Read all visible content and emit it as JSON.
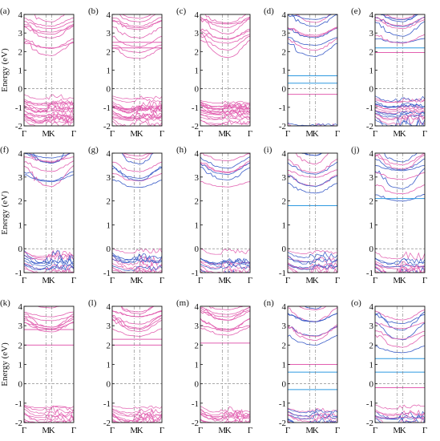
{
  "figure": {
    "ylabel": "Energy (eV)",
    "x_ticks": [
      "Γ",
      "M",
      "K",
      "Γ"
    ],
    "colors": {
      "pink": "#e25fb0",
      "blue": "#3a5cc8",
      "cyan": "#2f9ae0",
      "axis": "#111111",
      "dash": "#777777"
    }
  },
  "chart_data": [
    {
      "label": "(a)",
      "type": "line",
      "ylim": [
        -2,
        4
      ],
      "y_ticks": [
        "-2",
        "-1",
        "0",
        "1",
        "2",
        "3",
        "4"
      ],
      "dashed_zero": true,
      "gap": [
        0,
        1.3
      ],
      "valence_top": -0.1,
      "style": "pink",
      "flat_levels": [],
      "cond_range": [
        1.3,
        4
      ]
    },
    {
      "label": "(b)",
      "type": "line",
      "ylim": [
        -2,
        4
      ],
      "y_ticks": [
        "-2",
        "-1",
        "0",
        "1",
        "2",
        "3",
        "4"
      ],
      "dashed_zero": true,
      "gap": [
        0,
        1.3
      ],
      "valence_top": -0.1,
      "style": "pink",
      "flat_levels": [
        2.2,
        2.5
      ],
      "cond_range": [
        1.3,
        4
      ]
    },
    {
      "label": "(c)",
      "type": "line",
      "ylim": [
        -2,
        4
      ],
      "y_ticks": [
        "-2",
        "-1",
        "0",
        "1",
        "2",
        "3",
        "4"
      ],
      "dashed_zero": true,
      "gap": [
        0,
        1.3
      ],
      "valence_top": -0.1,
      "style": "pink",
      "flat_levels": [],
      "cond_range": [
        1.2,
        4
      ]
    },
    {
      "label": "(d)",
      "type": "line",
      "ylim": [
        -2,
        4
      ],
      "y_ticks": [
        "-2",
        "-1",
        "0",
        "1",
        "2",
        "3",
        "4"
      ],
      "dashed_zero": true,
      "gap": [
        -0.2,
        1.4
      ],
      "valence_top": -1.5,
      "style": "mix",
      "flat_levels": [
        0.3,
        -0.3,
        0.7
      ],
      "cond_range": [
        1.4,
        4
      ]
    },
    {
      "label": "(e)",
      "type": "line",
      "ylim": [
        -2,
        4
      ],
      "y_ticks": [
        "-2",
        "-1",
        "0",
        "1",
        "2",
        "3",
        "4"
      ],
      "dashed_zero": true,
      "gap": [
        0,
        1.8
      ],
      "valence_top": 0.0,
      "style": "mix",
      "flat_levels": [
        2.2,
        1.95
      ],
      "cond_range": [
        2.0,
        4
      ]
    },
    {
      "label": "(f)",
      "type": "line",
      "ylim": [
        -1,
        4
      ],
      "y_ticks": [
        "-1",
        "0",
        "1",
        "2",
        "3",
        "4"
      ],
      "dashed_zero": true,
      "gap": [
        0.3,
        2.0
      ],
      "valence_top": 0.3,
      "style": "mix",
      "flat_levels": [],
      "cond_range": [
        2.0,
        4
      ]
    },
    {
      "label": "(g)",
      "type": "line",
      "ylim": [
        -1,
        4
      ],
      "y_ticks": [
        "-1",
        "0",
        "1",
        "2",
        "3",
        "4"
      ],
      "dashed_zero": true,
      "gap": [
        0.3,
        2.0
      ],
      "valence_top": 0.3,
      "style": "mix",
      "flat_levels": [],
      "cond_range": [
        2.0,
        4
      ]
    },
    {
      "label": "(h)",
      "type": "line",
      "ylim": [
        -1,
        4
      ],
      "y_ticks": [
        "-1",
        "0",
        "1",
        "2",
        "3",
        "4"
      ],
      "dashed_zero": true,
      "gap": [
        0.3,
        2.0
      ],
      "valence_top": 0.2,
      "style": "mix",
      "flat_levels": [],
      "cond_range": [
        2.0,
        4
      ]
    },
    {
      "label": "(i)",
      "type": "line",
      "ylim": [
        -1,
        4
      ],
      "y_ticks": [
        "-1",
        "0",
        "1",
        "2",
        "3",
        "4"
      ],
      "dashed_zero": true,
      "gap": [
        0.3,
        1.7
      ],
      "valence_top": 0.2,
      "style": "mix",
      "flat_levels": [
        1.8
      ],
      "cond_range": [
        1.7,
        4
      ]
    },
    {
      "label": "(j)",
      "type": "line",
      "ylim": [
        -1,
        4
      ],
      "y_ticks": [
        "-1",
        "0",
        "1",
        "2",
        "3",
        "4"
      ],
      "dashed_zero": true,
      "gap": [
        0.3,
        1.7
      ],
      "valence_top": 0.2,
      "style": "mix",
      "flat_levels": [
        2.1
      ],
      "cond_range": [
        1.6,
        4
      ]
    },
    {
      "label": "(k)",
      "type": "line",
      "ylim": [
        -2,
        4
      ],
      "y_ticks": [
        "-2",
        "-1",
        "0",
        "1",
        "2",
        "3",
        "4"
      ],
      "dashed_zero": true,
      "gap": [
        -0.8,
        2.0
      ],
      "valence_top": -0.8,
      "style": "pink",
      "flat_levels": [
        2.0,
        2.8
      ],
      "cond_range": [
        2.0,
        4
      ]
    },
    {
      "label": "(l)",
      "type": "line",
      "ylim": [
        -2,
        4
      ],
      "y_ticks": [
        "-2",
        "-1",
        "0",
        "1",
        "2",
        "3",
        "4"
      ],
      "dashed_zero": true,
      "gap": [
        -0.8,
        2.0
      ],
      "valence_top": -0.8,
      "style": "pink",
      "flat_levels": [
        2.0,
        2.3
      ],
      "cond_range": [
        2.0,
        4
      ]
    },
    {
      "label": "(m)",
      "type": "line",
      "ylim": [
        -2,
        4
      ],
      "y_ticks": [
        "-2",
        "-1",
        "0",
        "1",
        "2",
        "3",
        "4"
      ],
      "dashed_zero": true,
      "gap": [
        -0.8,
        2.0
      ],
      "valence_top": -0.8,
      "style": "pink",
      "flat_levels": [
        2.1
      ],
      "cond_range": [
        2.0,
        4
      ]
    },
    {
      "label": "(n)",
      "type": "line",
      "ylim": [
        -2,
        4
      ],
      "y_ticks": [
        "-2",
        "-1",
        "0",
        "1",
        "2",
        "3",
        "4"
      ],
      "dashed_zero": true,
      "gap": [
        -0.3,
        1.5
      ],
      "valence_top": -0.8,
      "style": "mix",
      "flat_levels": [
        0.6,
        1.0,
        -0.3
      ],
      "cond_range": [
        1.5,
        4
      ]
    },
    {
      "label": "(o)",
      "type": "line",
      "ylim": [
        -2,
        4
      ],
      "y_ticks": [
        "-2",
        "-1",
        "0",
        "1",
        "2",
        "3",
        "4"
      ],
      "dashed_zero": true,
      "gap": [
        -0.2,
        1.3
      ],
      "valence_top": -0.9,
      "style": "mix",
      "flat_levels": [
        0.6,
        -0.2,
        1.3
      ],
      "cond_range": [
        1.3,
        4
      ]
    }
  ]
}
